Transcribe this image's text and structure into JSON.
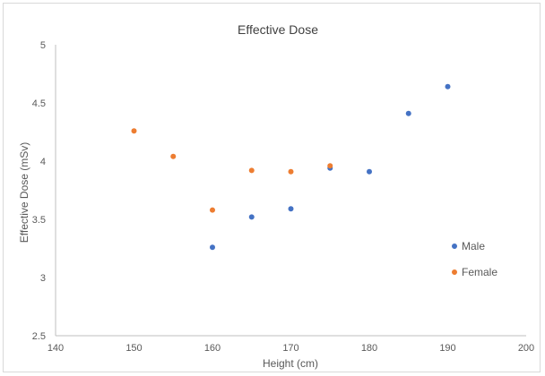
{
  "chart_data": {
    "type": "scatter",
    "title": "Effective Dose",
    "xlabel": "Height (cm)",
    "ylabel": "Effective Dose (mSv)",
    "xlim": [
      140,
      200
    ],
    "ylim": [
      2.5,
      5
    ],
    "xticks": [
      140,
      150,
      160,
      170,
      180,
      190,
      200
    ],
    "yticks": [
      2.5,
      3,
      3.5,
      4,
      4.5,
      5
    ],
    "xtick_labels": [
      "140",
      "150",
      "160",
      "170",
      "180",
      "190",
      "200"
    ],
    "ytick_labels": [
      "2.5",
      "3",
      "3.5",
      "4",
      "4.5",
      "5"
    ],
    "grid": false,
    "legend_position": "right",
    "series": [
      {
        "name": "Male",
        "color": "#4472c4",
        "points": [
          {
            "x": 160,
            "y": 3.26
          },
          {
            "x": 165,
            "y": 3.52
          },
          {
            "x": 170,
            "y": 3.59
          },
          {
            "x": 175,
            "y": 3.94
          },
          {
            "x": 180,
            "y": 3.91
          },
          {
            "x": 185,
            "y": 4.41
          },
          {
            "x": 190,
            "y": 4.64
          }
        ]
      },
      {
        "name": "Female",
        "color": "#ed7d31",
        "points": [
          {
            "x": 150,
            "y": 4.26
          },
          {
            "x": 155,
            "y": 4.04
          },
          {
            "x": 160,
            "y": 3.58
          },
          {
            "x": 165,
            "y": 3.92
          },
          {
            "x": 170,
            "y": 3.91
          },
          {
            "x": 175,
            "y": 3.96
          }
        ]
      }
    ]
  }
}
